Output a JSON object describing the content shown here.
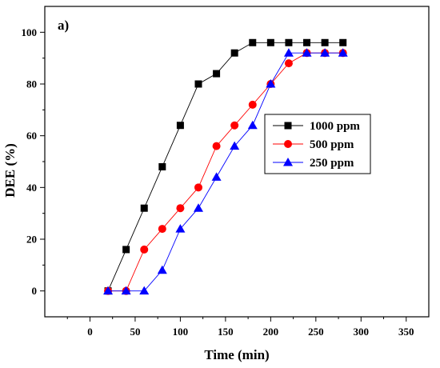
{
  "chart_data": {
    "type": "line",
    "panel_label": "a)",
    "xlabel": "Time (min)",
    "ylabel": "DEE (%)",
    "xlim": [
      -50,
      375
    ],
    "ylim": [
      -10,
      110
    ],
    "xticks": [
      0,
      50,
      100,
      150,
      200,
      250,
      300,
      350
    ],
    "yticks": [
      0,
      20,
      40,
      60,
      80,
      100
    ],
    "grid": false,
    "legend_position": "right",
    "series": [
      {
        "name": "1000 ppm",
        "color": "#000000",
        "marker": "square",
        "x": [
          20,
          40,
          60,
          80,
          100,
          120,
          140,
          160,
          180,
          200,
          220,
          240,
          260,
          280
        ],
        "y": [
          0,
          16,
          32,
          48,
          64,
          80,
          84,
          92,
          96,
          96,
          96,
          96,
          96,
          96
        ]
      },
      {
        "name": "500 ppm",
        "color": "#ff0000",
        "marker": "circle",
        "x": [
          20,
          40,
          60,
          80,
          100,
          120,
          140,
          160,
          180,
          200,
          220,
          240,
          260,
          280
        ],
        "y": [
          0,
          0,
          16,
          24,
          32,
          40,
          56,
          64,
          72,
          80,
          88,
          92,
          92,
          92
        ]
      },
      {
        "name": "250 ppm",
        "color": "#0000ff",
        "marker": "triangle",
        "x": [
          20,
          40,
          60,
          80,
          100,
          120,
          140,
          160,
          180,
          200,
          220,
          240,
          260,
          280
        ],
        "y": [
          0,
          0,
          0,
          8,
          24,
          32,
          44,
          56,
          64,
          80,
          92,
          92,
          92,
          92
        ]
      }
    ]
  }
}
